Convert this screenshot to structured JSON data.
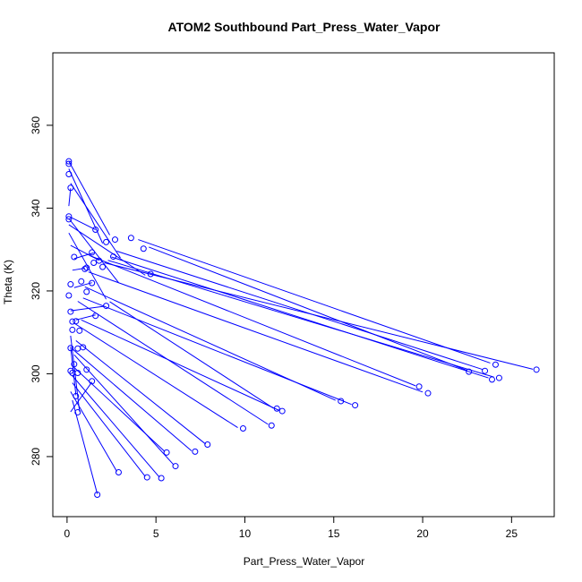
{
  "chart_data": {
    "type": "scatter",
    "title": "ATOM2 Southbound Part_Press_Water_Vapor",
    "xlabel": "Part_Press_Water_Vapor",
    "ylabel": "Theta (K)",
    "xlim": [
      -0.8,
      27.4
    ],
    "ylim": [
      265.5,
      377.5
    ],
    "x_ticks": [
      0,
      5,
      10,
      15,
      20,
      25
    ],
    "y_ticks": [
      280,
      300,
      320,
      340,
      360
    ],
    "grid": false,
    "legend": "none",
    "series_color": "#0000ff",
    "marker": "open-circle",
    "connect_points": true,
    "points": [
      [
        0.1,
        351.3
      ],
      [
        0.1,
        350.7
      ],
      [
        0.1,
        348.2
      ],
      [
        2.7,
        332.4
      ],
      [
        0.2,
        344.9
      ],
      [
        4.7,
        324.1
      ],
      [
        3.6,
        332.8
      ],
      [
        4.3,
        330.2
      ],
      [
        0.1,
        338.0
      ],
      [
        0.1,
        337.3
      ],
      [
        0.2,
        321.6
      ],
      [
        0.1,
        318.9
      ],
      [
        0.4,
        328.2
      ],
      [
        0.2,
        315.0
      ],
      [
        0.3,
        312.6
      ],
      [
        0.2,
        306.2
      ],
      [
        0.2,
        300.7
      ],
      [
        0.3,
        300.2
      ],
      [
        1.4,
        329.3
      ],
      [
        1.6,
        334.8
      ],
      [
        2.2,
        331.8
      ],
      [
        2.6,
        328.3
      ],
      [
        1.5,
        326.8
      ],
      [
        1.8,
        327.3
      ],
      [
        2.0,
        325.8
      ],
      [
        1.0,
        325.3
      ],
      [
        1.1,
        325.6
      ],
      [
        0.8,
        322.3
      ],
      [
        1.4,
        321.9
      ],
      [
        1.1,
        319.8
      ],
      [
        2.2,
        316.4
      ],
      [
        1.6,
        314.0
      ],
      [
        0.7,
        310.4
      ],
      [
        0.5,
        312.7
      ],
      [
        0.3,
        310.6
      ],
      [
        0.6,
        306.1
      ],
      [
        0.9,
        306.4
      ],
      [
        0.4,
        302.3
      ],
      [
        0.6,
        300.2
      ],
      [
        1.1,
        301.0
      ],
      [
        1.4,
        298.2
      ],
      [
        0.5,
        294.6
      ],
      [
        0.6,
        290.7
      ],
      [
        1.7,
        270.8
      ],
      [
        2.9,
        276.2
      ],
      [
        4.5,
        275.0
      ],
      [
        5.3,
        274.8
      ],
      [
        6.1,
        277.7
      ],
      [
        5.6,
        281.0
      ],
      [
        7.2,
        281.2
      ],
      [
        7.9,
        282.9
      ],
      [
        9.9,
        286.8
      ],
      [
        11.5,
        287.5
      ],
      [
        11.8,
        291.6
      ],
      [
        12.1,
        291.0
      ],
      [
        15.4,
        293.4
      ],
      [
        16.2,
        292.4
      ],
      [
        19.8,
        296.9
      ],
      [
        20.3,
        295.3
      ],
      [
        22.6,
        300.5
      ],
      [
        23.5,
        300.7
      ],
      [
        23.9,
        298.6
      ],
      [
        24.1,
        302.2
      ],
      [
        24.3,
        299.0
      ],
      [
        26.4,
        301.0
      ]
    ],
    "segments": [
      [
        0.1,
        351.3,
        2.4,
        333.5
      ],
      [
        0.1,
        349.5,
        2.0,
        331.5
      ],
      [
        0.2,
        346.0,
        3.0,
        328.0
      ],
      [
        0.1,
        337.5,
        2.9,
        322.0
      ],
      [
        0.1,
        336.0,
        4.4,
        323.8
      ],
      [
        0.1,
        334.0,
        2.2,
        318.0
      ],
      [
        4.0,
        332.4,
        23.8,
        302.6
      ],
      [
        4.6,
        330.6,
        22.5,
        300.8
      ],
      [
        2.8,
        329.6,
        23.4,
        301.0
      ],
      [
        2.5,
        328.2,
        23.7,
        299.0
      ],
      [
        2.3,
        327.4,
        24.0,
        299.2
      ],
      [
        2.1,
        326.8,
        26.2,
        301.1
      ],
      [
        1.3,
        328.5,
        19.6,
        297.1
      ],
      [
        1.2,
        324.6,
        20.0,
        295.6
      ],
      [
        1.0,
        321.0,
        15.1,
        293.6
      ],
      [
        0.9,
        318.3,
        16.0,
        292.6
      ],
      [
        2.4,
        317.4,
        11.6,
        291.7
      ],
      [
        0.8,
        313.0,
        11.9,
        291.2
      ],
      [
        0.6,
        317.5,
        11.3,
        287.8
      ],
      [
        0.4,
        312.2,
        9.6,
        287.0
      ],
      [
        0.5,
        308.0,
        7.8,
        283.0
      ],
      [
        0.3,
        306.0,
        7.0,
        281.4
      ],
      [
        0.4,
        304.6,
        6.0,
        278.0
      ],
      [
        0.3,
        301.9,
        5.5,
        281.2
      ],
      [
        0.3,
        299.5,
        5.2,
        275.0
      ],
      [
        0.3,
        297.8,
        4.4,
        275.2
      ],
      [
        0.2,
        295.7,
        2.8,
        276.4
      ],
      [
        0.3,
        293.6,
        1.7,
        271.0
      ],
      [
        0.2,
        290.8,
        1.4,
        298.0
      ],
      [
        0.2,
        306.5,
        0.5,
        294.8
      ],
      [
        0.2,
        309.2,
        0.7,
        290.9
      ],
      [
        0.5,
        313.0,
        1.6,
        314.2
      ],
      [
        0.2,
        315.2,
        2.1,
        316.3
      ],
      [
        0.4,
        320.8,
        1.4,
        322.0
      ],
      [
        0.3,
        325.0,
        1.0,
        325.5
      ],
      [
        0.4,
        327.8,
        1.5,
        329.2
      ],
      [
        0.2,
        331.0,
        1.8,
        327.4
      ],
      [
        0.1,
        340.5,
        0.2,
        344.8
      ],
      [
        0.2,
        337.8,
        1.6,
        334.8
      ]
    ]
  }
}
